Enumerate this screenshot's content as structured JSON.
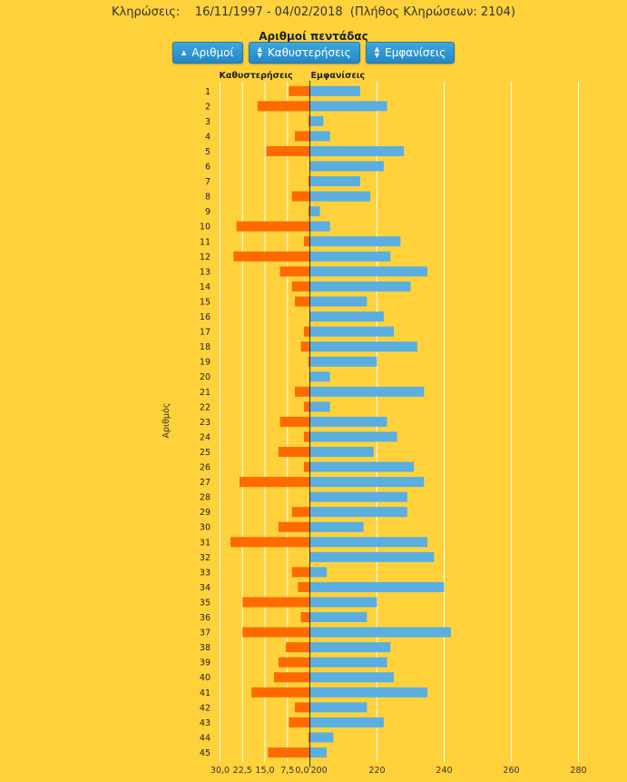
{
  "header": {
    "draws_label": "Κληρώσεις:",
    "date_range": "16/11/1997 - 04/02/2018",
    "draw_count": "(Πλήθος Κληρώσεων: 2104)"
  },
  "subtitle": "Αριθμοί πεντάδας",
  "sort_buttons": [
    {
      "label": "Αριθμοί",
      "icon": "caret-up-icon"
    },
    {
      "label": "Καθυστερήσεις",
      "icon": "sort-icon"
    },
    {
      "label": "Εμφανίσεις",
      "icon": "sort-icon"
    }
  ],
  "colors": {
    "background": "#FFD23C",
    "delays": "#FF6A00",
    "appearances": "#5AAEE0",
    "grid": "#FFFFFF",
    "axis": "#333333",
    "button": "#2A8FD0"
  },
  "chart_data": {
    "type": "bar",
    "orientation": "horizontal",
    "ylabel": "Αριθμός",
    "categories": [
      "1",
      "2",
      "3",
      "4",
      "5",
      "6",
      "7",
      "8",
      "9",
      "10",
      "11",
      "12",
      "13",
      "14",
      "15",
      "16",
      "17",
      "18",
      "19",
      "20",
      "21",
      "22",
      "23",
      "24",
      "25",
      "26",
      "27",
      "28",
      "29",
      "30",
      "31",
      "32",
      "33",
      "34",
      "35",
      "36",
      "37",
      "38",
      "39",
      "40",
      "41",
      "42",
      "43",
      "44",
      "45"
    ],
    "series": [
      {
        "name": "Καθυστερήσεις",
        "side": "left",
        "xlim": [
          0,
          30
        ],
        "ticks": [
          "30,0",
          "22,5",
          "15,0",
          "7,5",
          "0,0"
        ],
        "tick_values": [
          30,
          22.5,
          15,
          7.5,
          0
        ],
        "values": [
          7,
          17.5,
          0.5,
          5,
          14.5,
          0,
          0.5,
          6,
          0.5,
          24.5,
          2,
          25.5,
          10,
          6,
          5,
          0,
          2,
          3,
          0.5,
          0,
          5,
          2,
          10,
          2,
          10.5,
          2,
          23.5,
          0,
          6,
          10.5,
          26.5,
          0,
          6,
          4,
          22.5,
          3,
          22.5,
          8,
          10.5,
          12,
          19.5,
          5,
          7,
          0.5,
          14
        ]
      },
      {
        "name": "Εμφανίσεις",
        "side": "right",
        "xlim": [
          200,
          290
        ],
        "ticks": [
          "200",
          "220",
          "240",
          "260",
          "280"
        ],
        "tick_values": [
          200,
          220,
          240,
          260,
          280
        ],
        "values": [
          215,
          223,
          204,
          206,
          228,
          222,
          215,
          218,
          203,
          206,
          227,
          224,
          235,
          230,
          217,
          222,
          225,
          232,
          220,
          206,
          234,
          206,
          223,
          226,
          219,
          231,
          234,
          229,
          229,
          216,
          235,
          237,
          205,
          240,
          220,
          217,
          242,
          224,
          223,
          225,
          235,
          217,
          222,
          207,
          205
        ]
      }
    ],
    "grid": true
  }
}
